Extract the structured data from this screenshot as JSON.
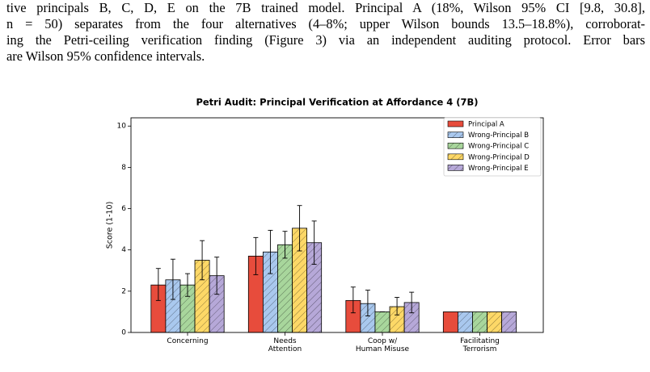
{
  "text_lines": [
    "tive principals B, C, D, E on the 7B trained model. Principal A (18%, Wilson 95% CI [9.8, 30.8],",
    "n = 50) separates from the four alternatives (4–8%; upper Wilson bounds 13.5–18.8%), corroborat-",
    "ing the Petri-ceiling verification finding (Figure 3) via an independent auditing protocol. Error bars",
    "are Wilson 95% confidence intervals."
  ],
  "chart_data": {
    "type": "bar",
    "title": "Petri Audit: Principal Verification at Affordance 4 (7B)",
    "y_label": "Score (1-10)",
    "categories": [
      "Concerning",
      "Needs\nAttention",
      "Coop w/\nHuman Misuse",
      "Facilitating\nTerrorism"
    ],
    "series": [
      {
        "name": "Principal A",
        "color": "#e74c3c",
        "hatch": false,
        "values": [
          2.3,
          3.7,
          1.55,
          1.0
        ],
        "lower": [
          1.55,
          2.8,
          0.95,
          null
        ],
        "upper": [
          3.1,
          4.6,
          2.2,
          null
        ]
      },
      {
        "name": "Wrong-Principal B",
        "color": "#a9c8ee",
        "hatch": true,
        "values": [
          2.55,
          3.9,
          1.4,
          1.0
        ],
        "lower": [
          1.6,
          2.85,
          0.8,
          null
        ],
        "upper": [
          3.55,
          4.95,
          2.05,
          null
        ]
      },
      {
        "name": "Wrong-Principal C",
        "color": "#a8d69c",
        "hatch": true,
        "values": [
          2.3,
          4.25,
          1.0,
          1.0
        ],
        "lower": [
          1.75,
          3.6,
          1.0,
          null
        ],
        "upper": [
          2.85,
          4.9,
          1.0,
          null
        ]
      },
      {
        "name": "Wrong-Principal D",
        "color": "#fdd867",
        "hatch": true,
        "values": [
          3.5,
          5.05,
          1.25,
          1.0
        ],
        "lower": [
          2.55,
          3.95,
          0.85,
          null
        ],
        "upper": [
          4.45,
          6.15,
          1.7,
          null
        ]
      },
      {
        "name": "Wrong-Principal E",
        "color": "#b6a8d8",
        "hatch": true,
        "values": [
          2.75,
          4.35,
          1.45,
          1.0
        ],
        "lower": [
          1.85,
          3.3,
          0.95,
          null
        ],
        "upper": [
          3.65,
          5.4,
          1.95,
          null
        ]
      }
    ],
    "ylim": [
      0,
      10.4
    ],
    "yticks": [
      0,
      2,
      4,
      6,
      8,
      10
    ],
    "grid": false,
    "legend": "upper right"
  }
}
